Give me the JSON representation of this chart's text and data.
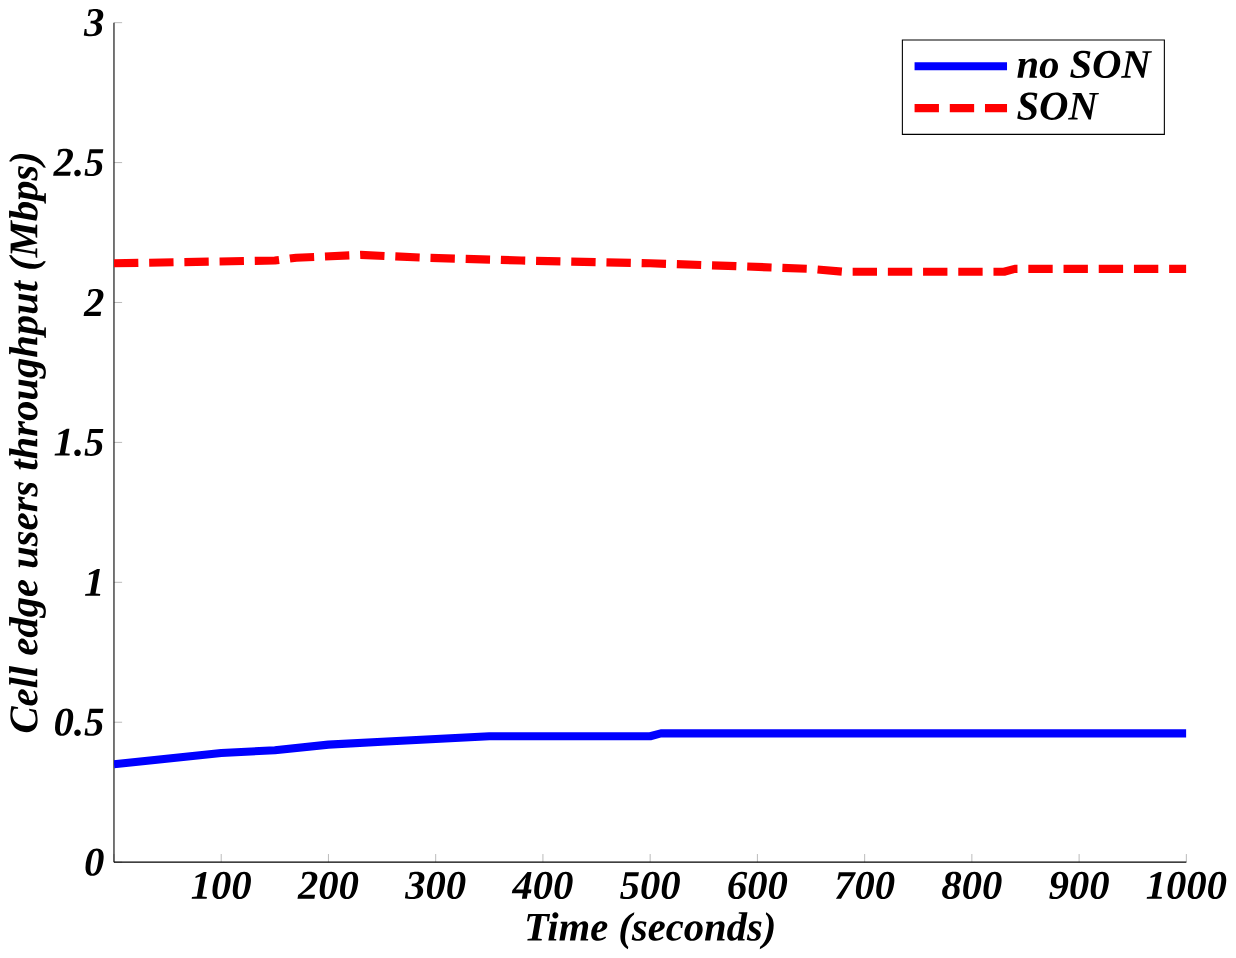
{
  "chart_data": {
    "type": "line",
    "xlabel": "Time (seconds)",
    "ylabel": "Cell edge users throughput (Mbps)",
    "xlim": [
      0,
      1000
    ],
    "ylim": [
      0,
      3
    ],
    "xticks": [
      {
        "value": 0,
        "label": null
      },
      100,
      200,
      300,
      400,
      500,
      600,
      700,
      800,
      900,
      1000
    ],
    "yticks": [
      0,
      0.5,
      1,
      1.5,
      2,
      2.5,
      3
    ],
    "grid": false,
    "legend": "top right",
    "series": [
      {
        "name": "no SON",
        "color": "#0000ff",
        "line_style": "solid",
        "x": [
          0,
          50,
          100,
          150,
          200,
          250,
          300,
          350,
          500,
          510,
          1000
        ],
        "values": [
          0.35,
          0.37,
          0.39,
          0.4,
          0.42,
          0.43,
          0.44,
          0.45,
          0.45,
          0.46,
          0.46
        ]
      },
      {
        "name": "SON",
        "color": "#ff0000",
        "line_style": "dashed",
        "x": [
          0,
          150,
          170,
          230,
          290,
          380,
          500,
          580,
          650,
          680,
          830,
          840,
          1000
        ],
        "values": [
          2.14,
          2.15,
          2.16,
          2.17,
          2.16,
          2.15,
          2.14,
          2.13,
          2.12,
          2.11,
          2.11,
          2.12,
          2.12
        ]
      }
    ]
  }
}
